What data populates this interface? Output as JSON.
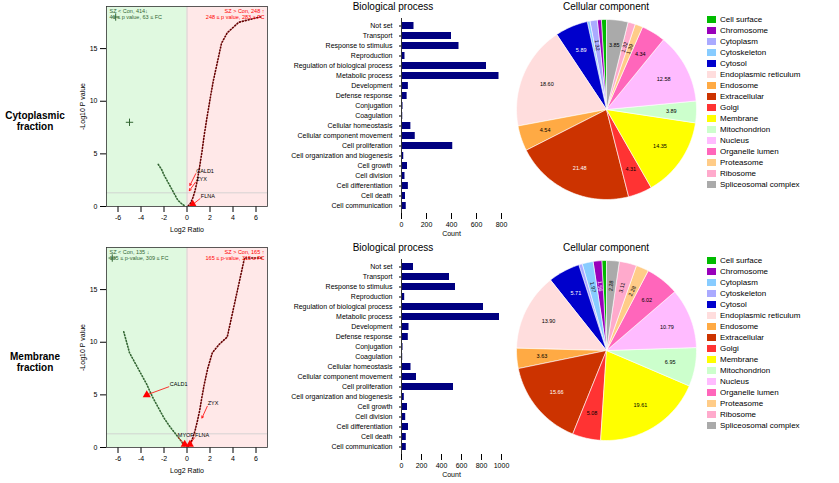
{
  "chart_data": [
    {
      "type": "text",
      "text": "Cytoplasmic\nfraction"
    },
    {
      "type": "scatter",
      "xlabel": "Log2 Ratio",
      "ylabel": "-Log10 P value",
      "xlim": [
        -7,
        7
      ],
      "ylim": [
        0,
        19
      ],
      "xticks": [
        -6,
        -4,
        -2,
        0,
        2,
        4,
        6
      ],
      "yticks": [
        0,
        5,
        10,
        15
      ],
      "spans": [
        {
          "x": [
            -7,
            0
          ],
          "color": "#00cc00"
        },
        {
          "x": [
            0,
            7
          ],
          "color": "#ff4444"
        }
      ],
      "hlines": [
        1.3
      ],
      "vlines": [
        0
      ],
      "series": [
        {
          "type": "line",
          "line_style": "dotted",
          "color": "#336633",
          "x": [
            -2.5,
            -2.2,
            -2.0,
            -1.8,
            -1.6,
            -1.4,
            -1.2,
            -1.0,
            -0.8,
            -0.5,
            -0.2
          ],
          "values": [
            4.0,
            3.5,
            3.0,
            2.6,
            2.2,
            1.8,
            1.4,
            1.0,
            0.6,
            0.3,
            0.05
          ]
        },
        {
          "type": "scatter",
          "marker": "plus",
          "color": "#336633",
          "x": [
            -6.2,
            -5.0
          ],
          "values": [
            18.0,
            8.0
          ]
        },
        {
          "type": "line",
          "line_style": "dotted",
          "color": "#660000",
          "x": [
            0.1,
            0.3,
            0.5,
            0.7,
            0.9,
            1.1,
            1.3,
            1.5,
            1.7,
            1.9,
            2.1,
            2.3,
            2.6,
            3.0,
            3.5,
            4.5,
            6.3,
            6.5
          ],
          "values": [
            0.05,
            0.3,
            0.8,
            1.5,
            2.5,
            3.8,
            5.2,
            6.8,
            8.2,
            9.5,
            10.8,
            12.0,
            13.5,
            15.5,
            16.5,
            17.5,
            18.0,
            18.0
          ]
        },
        {
          "type": "scatter",
          "marker": "triangle",
          "color": "red",
          "x": [
            0.5
          ],
          "values": [
            0.2
          ]
        }
      ],
      "annotations": [
        {
          "text": "CALD1",
          "x": 0.8,
          "y": 3.2,
          "arrow_x": 0.25,
          "arrow_y": 2.0
        },
        {
          "text": "ZYX",
          "x": 0.8,
          "y": 2.4,
          "arrow_x": 0.2,
          "arrow_y": 1.5
        },
        {
          "text": "FLNA",
          "x": 1.2,
          "y": 0.8,
          "arrow_x": 0.5,
          "arrow_y": 0.2
        }
      ],
      "top_labels": [
        {
          "text": "SZ < Con, 414↓\n41 ≤ p value, 63 ≤ FC",
          "color": "#336633"
        },
        {
          "text": "SZ > Con, 248 ↑\n248 ≤ p value, 283 ≥ FC",
          "color": "red"
        }
      ]
    },
    {
      "type": "bar",
      "orientation": "horizontal",
      "title": "Biological process",
      "xlabel": "Count",
      "categories": [
        "Not set",
        "Transport",
        "Response to stimulus",
        "Reproduction",
        "Regulation of biological process",
        "Metabolic process",
        "Development",
        "Defense response",
        "Conjugation",
        "Coagulation",
        "Cellular homeostasis",
        "Cellular component movement",
        "Cell proliferation",
        "Cell organization and biogenesis",
        "Cell growth",
        "Cell division",
        "Cell differentiation",
        "Cell death",
        "Cell communication"
      ],
      "values": [
        100,
        400,
        460,
        28,
        680,
        780,
        55,
        45,
        12,
        10,
        75,
        110,
        410,
        18,
        48,
        28,
        55,
        32,
        38
      ],
      "color": "#000080",
      "xlim": [
        0,
        800
      ],
      "xticks": [
        0,
        200,
        400,
        600,
        800
      ]
    },
    {
      "type": "pie",
      "title": "Cellular component",
      "data_labels": true,
      "legend": "right",
      "categories": [
        "Cell surface",
        "Chromosome",
        "Cytoplasm",
        "Cytoskeleton",
        "Cytosol",
        "Endoplasmic reticulum",
        "Endosome",
        "Extracellular",
        "Golgi",
        "Membrane",
        "Mitochondrion",
        "Nucleus",
        "Organelle lumen",
        "Proteasome",
        "Ribosome",
        "Spliceosomal complex"
      ],
      "values": [
        0.91,
        0.73,
        1.32,
        0.48,
        5.89,
        18.6,
        4.54,
        21.48,
        4.31,
        14.35,
        3.89,
        12.58,
        4.34,
        1.39,
        1.32,
        3.85
      ],
      "value_labels": [
        null,
        null,
        "1.32",
        null,
        "5.89",
        "18.60",
        "4.54",
        "21.48",
        "4.31",
        "14.35",
        "3.89",
        "12.58",
        "4.34",
        "1.39",
        "1.32",
        "3.85"
      ],
      "colors": [
        "#00bb00",
        "#9900bb",
        "#aaaaff",
        "#88ccff",
        "#0000cc",
        "#ffdddd",
        "#ffaa44",
        "#cc3300",
        "#ff3333",
        "#ffff00",
        "#ccffcc",
        "#ffbbff",
        "#ff66bb",
        "#ffcc88",
        "#ffaacc",
        "#aaaaaa"
      ]
    },
    {
      "type": "text",
      "text": "Membrane\nfraction"
    },
    {
      "type": "scatter",
      "xlabel": "Log2 Ratio",
      "ylabel": "-Log10 P value",
      "xlim": [
        -7,
        7
      ],
      "ylim": [
        0,
        19
      ],
      "xticks": [
        -6,
        -4,
        -2,
        0,
        2,
        4,
        6
      ],
      "yticks": [
        0,
        5,
        10,
        15
      ],
      "spans": [
        {
          "x": [
            -7,
            0
          ],
          "color": "#00cc00"
        },
        {
          "x": [
            0,
            7
          ],
          "color": "#ff4444"
        }
      ],
      "hlines": [
        1.3
      ],
      "vlines": [
        0
      ],
      "series": [
        {
          "type": "line",
          "line_style": "dotted",
          "color": "#336633",
          "x": [
            -5.5,
            -5.0,
            -4.5,
            -4.0,
            -3.5,
            -3.0,
            -2.5,
            -2.0,
            -1.5,
            -1.0,
            -0.5,
            -0.2
          ],
          "values": [
            11.0,
            9.0,
            8.0,
            7.0,
            6.0,
            4.8,
            3.8,
            2.8,
            2.0,
            1.3,
            0.6,
            0.1
          ]
        },
        {
          "type": "scatter",
          "marker": "plus",
          "color": "#336633",
          "x": [
            -6.5
          ],
          "values": [
            18.0
          ]
        },
        {
          "type": "line",
          "line_style": "dotted",
          "color": "#660000",
          "x": [
            0.1,
            0.3,
            0.5,
            0.7,
            0.9,
            1.1,
            1.3,
            1.5,
            1.8,
            2.2,
            2.8,
            3.5,
            5.0,
            6.5
          ],
          "values": [
            0.1,
            0.4,
            0.9,
            1.6,
            2.5,
            3.5,
            4.8,
            6.0,
            7.5,
            9.0,
            9.8,
            10.5,
            18.0,
            18.0
          ]
        },
        {
          "type": "scatter",
          "marker": "triangle",
          "color": "red",
          "x": [
            -0.2,
            0.25
          ],
          "values": [
            0.3,
            0.3
          ]
        },
        {
          "type": "scatter",
          "marker": "triangle",
          "color": "red",
          "x": [
            -3.5
          ],
          "values": [
            5.0
          ]
        }
      ],
      "annotations": [
        {
          "text": "CALD1",
          "x": -1.5,
          "y": 5.8,
          "arrow_x": -3.5,
          "arrow_y": 5.0
        },
        {
          "text": "MYOF",
          "x": -0.8,
          "y": 1.0,
          "arrow_x": -0.2,
          "arrow_y": 0.3
        },
        {
          "text": "FLNA",
          "x": 0.7,
          "y": 1.0,
          "arrow_x": 0.25,
          "arrow_y": 0.3
        },
        {
          "text": "ZYX",
          "x": 1.8,
          "y": 4.0,
          "arrow_x": 1.3,
          "arrow_y": 2.8
        }
      ],
      "top_labels": [
        {
          "text": "SZ < Con, 135 ↓\n135 ≤ p-value, 309 ≤ FC",
          "color": "#336633"
        },
        {
          "text": "SZ > Con, 165 ↑\n165 ≤ p-value, 315 ≥ FC",
          "color": "red"
        }
      ]
    },
    {
      "type": "bar",
      "orientation": "horizontal",
      "title": "Biological process",
      "xlabel": "Count",
      "categories": [
        "Not set",
        "Transport",
        "Response to stimulus",
        "Reproduction",
        "Regulation of biological process",
        "Metabolic process",
        "Development",
        "Defense response",
        "Conjugation",
        "Coagulation",
        "Cellular homeostasis",
        "Cellular component movement",
        "Cell proliferation",
        "Cell organization and biogenesis",
        "Cell growth",
        "Cell division",
        "Cell differentiation",
        "Cell death",
        "Cell communication"
      ],
      "values": [
        120,
        480,
        540,
        32,
        820,
        980,
        75,
        68,
        15,
        12,
        95,
        150,
        520,
        28,
        60,
        42,
        70,
        48,
        48
      ],
      "color": "#000080",
      "xlim": [
        0,
        1000
      ],
      "xticks": [
        0,
        200,
        400,
        600,
        800,
        1000
      ]
    },
    {
      "type": "pie",
      "title": "Cellular component",
      "data_labels": true,
      "legend": "right",
      "categories": [
        "Cell surface",
        "Chromosome",
        "Cytoplasm",
        "Cytoskeleton",
        "Cytosol",
        "Endoplasmic reticulum",
        "Endosome",
        "Extracellular",
        "Golgi",
        "Membrane",
        "Mitochondrion",
        "Nucleus",
        "Organelle lumen",
        "Proteasome",
        "Ribosome",
        "Spliceosomal complex"
      ],
      "values": [
        0.83,
        1.56,
        1.97,
        0.62,
        5.71,
        13.9,
        3.63,
        15.66,
        5.08,
        19.61,
        6.95,
        10.79,
        6.02,
        2.28,
        3.11,
        2.28
      ],
      "value_labels": [
        null,
        "1.56",
        "1.97",
        null,
        "5.71",
        "13.90",
        "3.63",
        "15.66",
        "5.08",
        "19.61",
        "6.95",
        "10.79",
        "6.02",
        "2.28",
        "3.11",
        "2.28"
      ],
      "colors": [
        "#00bb00",
        "#9900bb",
        "#88ccff",
        "#aaaaff",
        "#0000cc",
        "#ffdddd",
        "#ffaa44",
        "#cc3300",
        "#ff3333",
        "#ffff00",
        "#ccffcc",
        "#ffbbff",
        "#ff66bb",
        "#ffcc88",
        "#ffaacc",
        "#aaaaaa"
      ]
    }
  ]
}
